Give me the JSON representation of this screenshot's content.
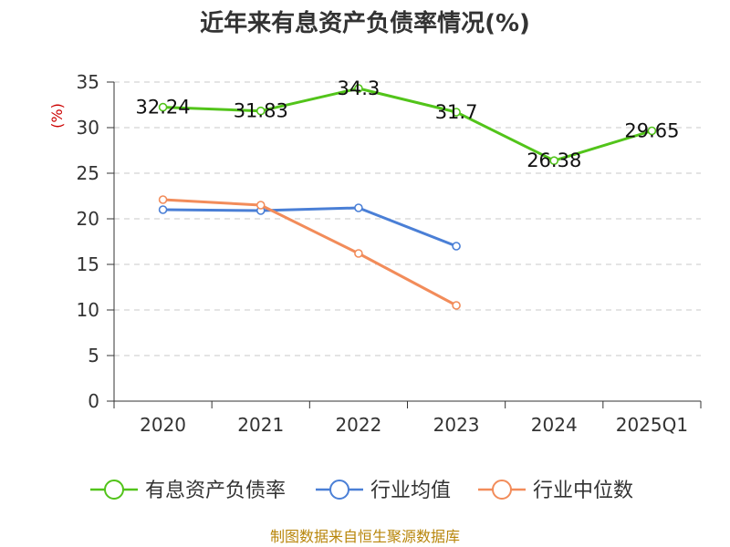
{
  "chart_data": {
    "type": "line",
    "title": "近年来有息资产负债率情况(%)",
    "ylabel": "(%)",
    "xlabel": "",
    "categories": [
      "2020",
      "2021",
      "2022",
      "2023",
      "2024",
      "2025Q1"
    ],
    "ylim": [
      0,
      35
    ],
    "yticks": [
      0,
      5,
      10,
      15,
      20,
      25,
      30,
      35
    ],
    "grid": true,
    "legend_position": "bottom",
    "series": [
      {
        "name": "有息资产负债率",
        "color": "#52c41a",
        "values": [
          32.24,
          31.83,
          34.3,
          31.7,
          26.38,
          29.65
        ],
        "labels": [
          "32.24",
          "31.83",
          "34.3",
          "31.7",
          "26.38",
          "29.65"
        ]
      },
      {
        "name": "行业均值",
        "color": "#4a7fd6",
        "values": [
          21.0,
          20.9,
          21.2,
          17.0,
          null,
          null
        ]
      },
      {
        "name": "行业中位数",
        "color": "#f28c5a",
        "values": [
          22.1,
          21.5,
          16.2,
          10.5,
          null,
          null
        ]
      }
    ]
  },
  "source": "制图数据来自恒生聚源数据库"
}
